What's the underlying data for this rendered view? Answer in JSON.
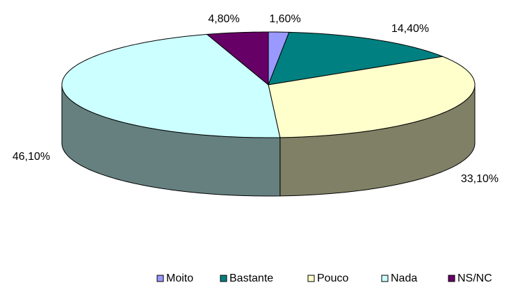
{
  "chart_data": {
    "type": "pie3d",
    "categories": [
      "Moito",
      "Bastante",
      "Pouco",
      "Nada",
      "NS/NC"
    ],
    "values": [
      1.6,
      14.4,
      33.1,
      46.1,
      4.8
    ],
    "value_labels": [
      "1,60%",
      "14,40%",
      "33,10%",
      "46,10%",
      "4,80%"
    ],
    "colors": [
      "#9999ff",
      "#008080",
      "#ffffcc",
      "#ccffff",
      "#660066"
    ],
    "legend": "bottom"
  }
}
